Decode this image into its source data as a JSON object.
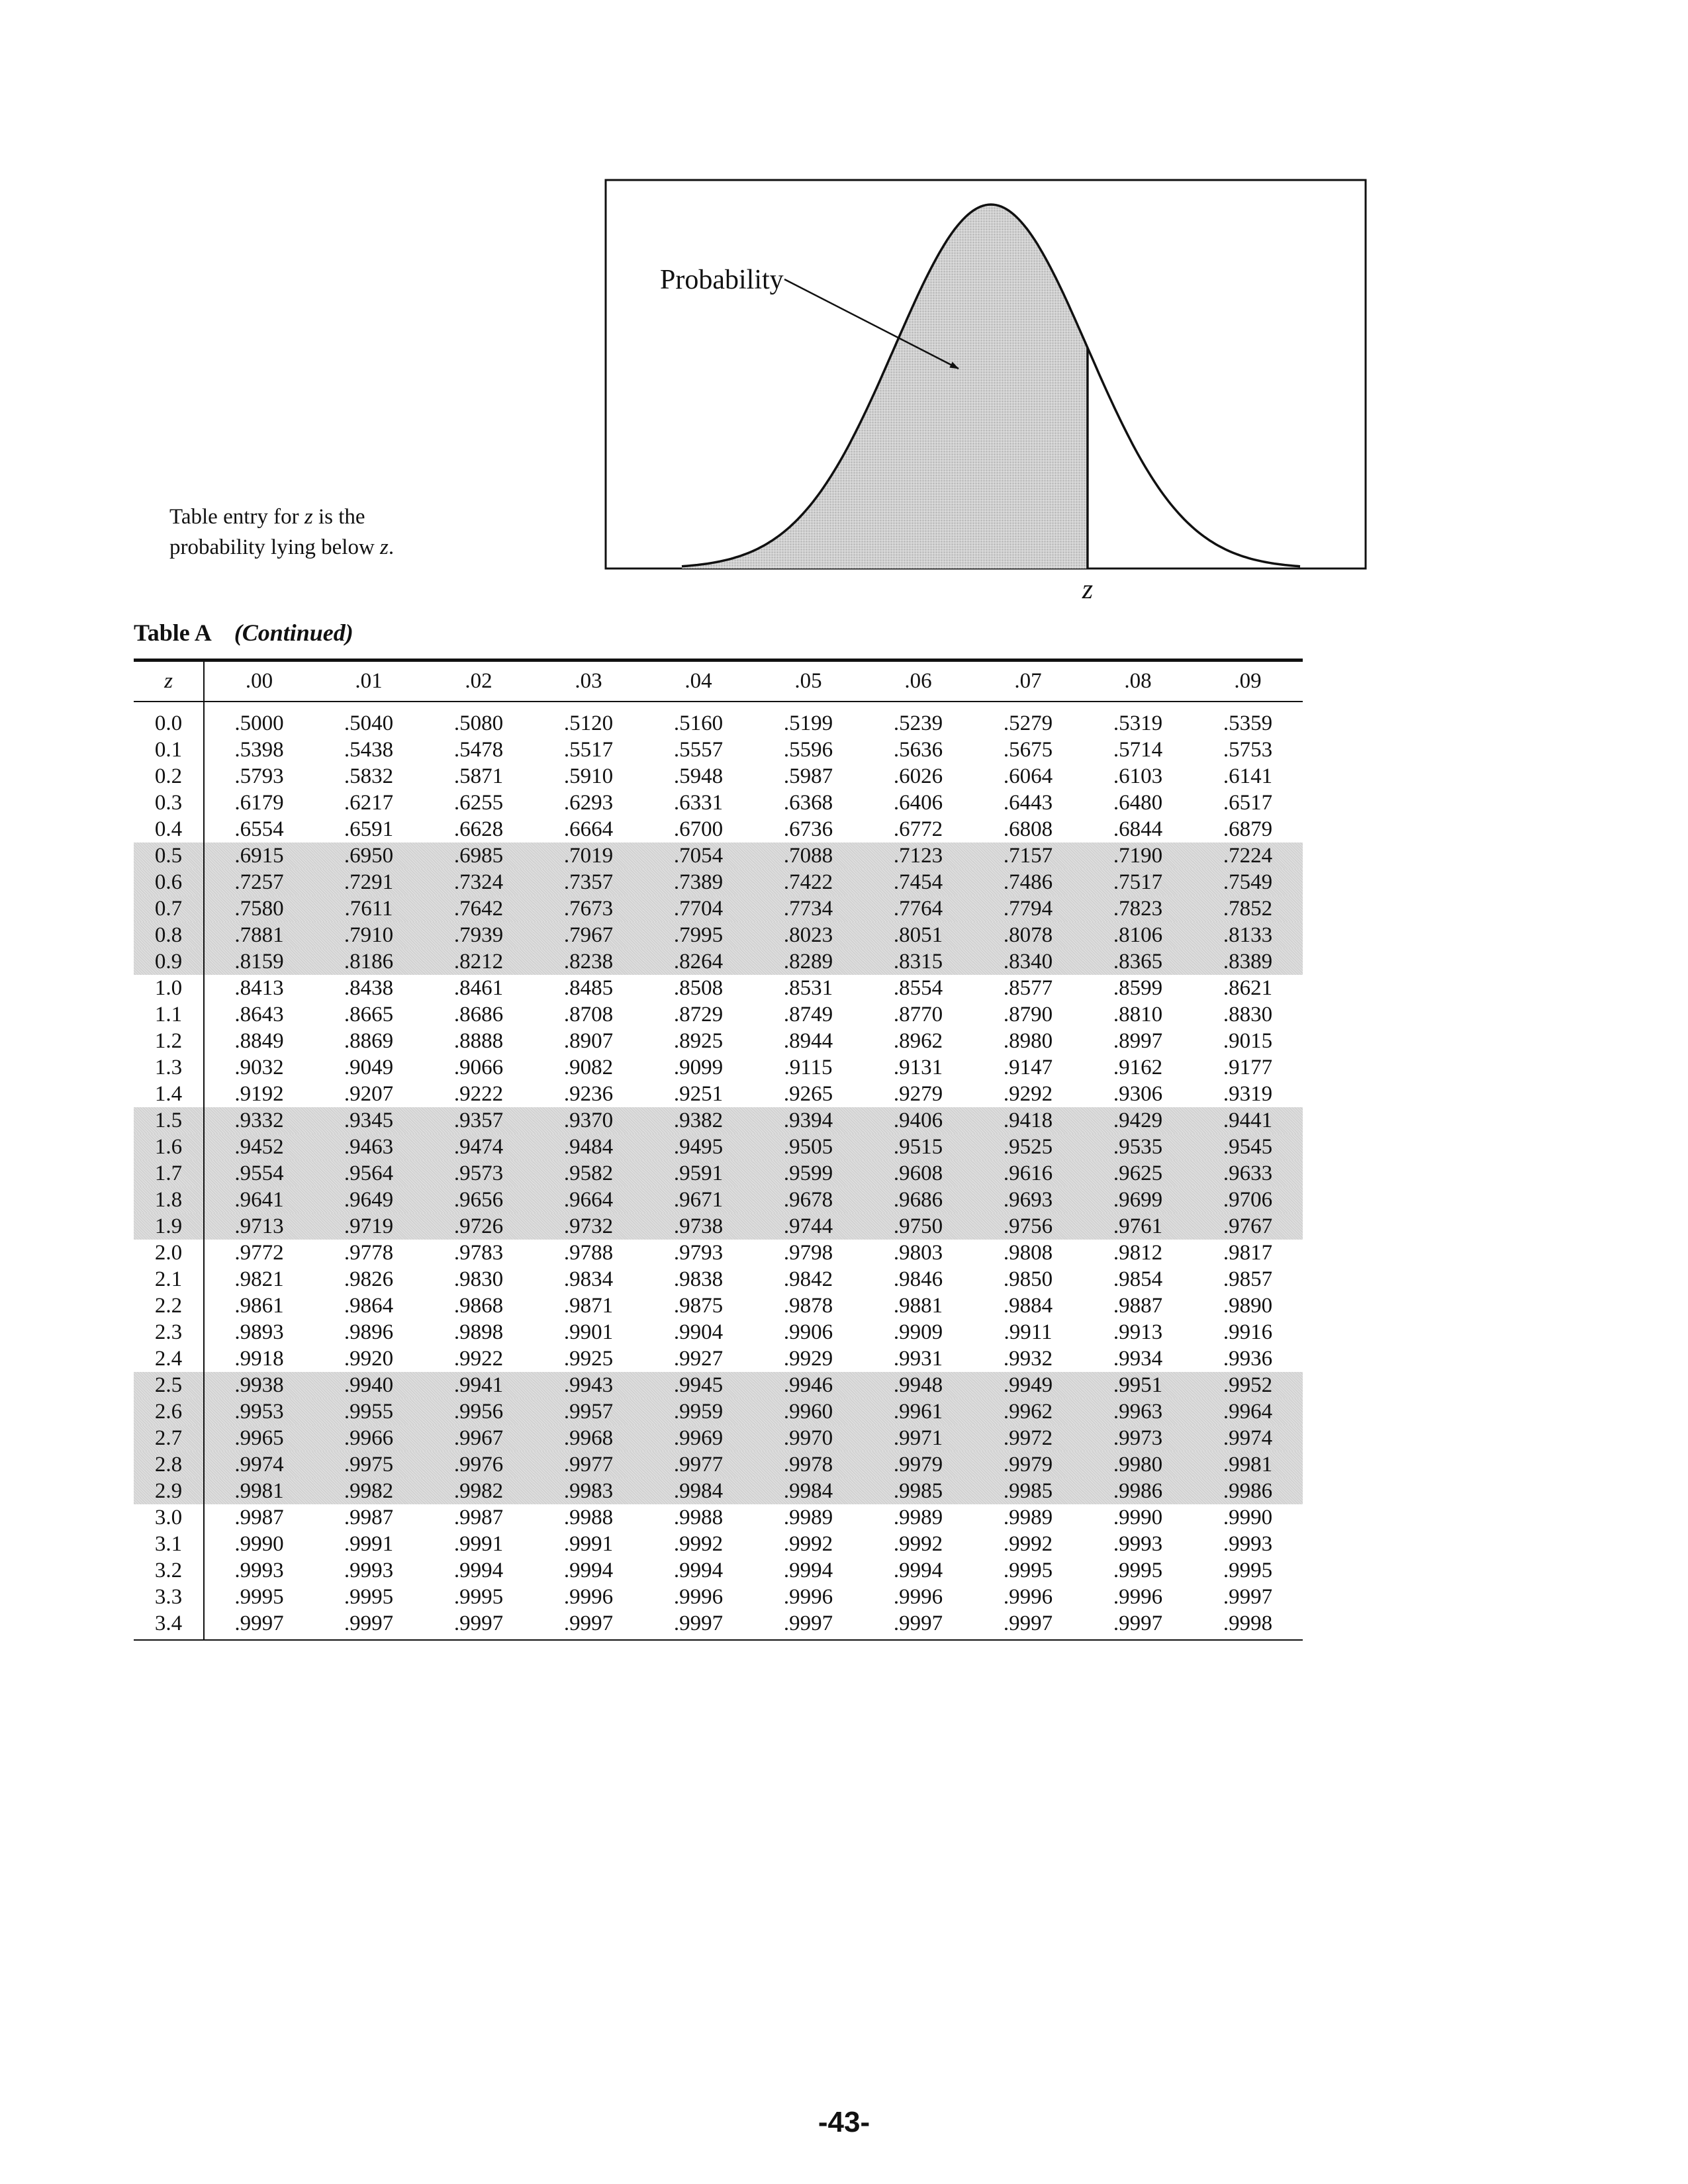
{
  "figure": {
    "arrow_label": "Probability",
    "z_marker": "z",
    "caption_line1_pre": "Table entry for ",
    "caption_line1_z": "z",
    "caption_line1_post": " is the",
    "caption_line2_pre": "probability lying below ",
    "caption_line2_z": "z",
    "caption_line2_post": ".",
    "shading_color": "#d2d2d2",
    "curve": {
      "mean": 0,
      "sd": 1,
      "x_range": [
        -3.2,
        3.2
      ],
      "shaded_below_z": 1.0
    }
  },
  "table": {
    "name": "Table A",
    "status": "(Continued)",
    "z_header": "z",
    "column_headers": [
      ".00",
      ".01",
      ".02",
      ".03",
      ".04",
      ".05",
      ".06",
      ".07",
      ".08",
      ".09"
    ],
    "shaded_color": "#d2d2d2",
    "rows": [
      {
        "z": "0.0",
        "shaded": false,
        "values": [
          ".5000",
          ".5040",
          ".5080",
          ".5120",
          ".5160",
          ".5199",
          ".5239",
          ".5279",
          ".5319",
          ".5359"
        ]
      },
      {
        "z": "0.1",
        "shaded": false,
        "values": [
          ".5398",
          ".5438",
          ".5478",
          ".5517",
          ".5557",
          ".5596",
          ".5636",
          ".5675",
          ".5714",
          ".5753"
        ]
      },
      {
        "z": "0.2",
        "shaded": false,
        "values": [
          ".5793",
          ".5832",
          ".5871",
          ".5910",
          ".5948",
          ".5987",
          ".6026",
          ".6064",
          ".6103",
          ".6141"
        ]
      },
      {
        "z": "0.3",
        "shaded": false,
        "values": [
          ".6179",
          ".6217",
          ".6255",
          ".6293",
          ".6331",
          ".6368",
          ".6406",
          ".6443",
          ".6480",
          ".6517"
        ]
      },
      {
        "z": "0.4",
        "shaded": false,
        "values": [
          ".6554",
          ".6591",
          ".6628",
          ".6664",
          ".6700",
          ".6736",
          ".6772",
          ".6808",
          ".6844",
          ".6879"
        ]
      },
      {
        "z": "0.5",
        "shaded": true,
        "values": [
          ".6915",
          ".6950",
          ".6985",
          ".7019",
          ".7054",
          ".7088",
          ".7123",
          ".7157",
          ".7190",
          ".7224"
        ]
      },
      {
        "z": "0.6",
        "shaded": true,
        "values": [
          ".7257",
          ".7291",
          ".7324",
          ".7357",
          ".7389",
          ".7422",
          ".7454",
          ".7486",
          ".7517",
          ".7549"
        ]
      },
      {
        "z": "0.7",
        "shaded": true,
        "values": [
          ".7580",
          ".7611",
          ".7642",
          ".7673",
          ".7704",
          ".7734",
          ".7764",
          ".7794",
          ".7823",
          ".7852"
        ]
      },
      {
        "z": "0.8",
        "shaded": true,
        "values": [
          ".7881",
          ".7910",
          ".7939",
          ".7967",
          ".7995",
          ".8023",
          ".8051",
          ".8078",
          ".8106",
          ".8133"
        ]
      },
      {
        "z": "0.9",
        "shaded": true,
        "values": [
          ".8159",
          ".8186",
          ".8212",
          ".8238",
          ".8264",
          ".8289",
          ".8315",
          ".8340",
          ".8365",
          ".8389"
        ]
      },
      {
        "z": "1.0",
        "shaded": false,
        "values": [
          ".8413",
          ".8438",
          ".8461",
          ".8485",
          ".8508",
          ".8531",
          ".8554",
          ".8577",
          ".8599",
          ".8621"
        ]
      },
      {
        "z": "1.1",
        "shaded": false,
        "values": [
          ".8643",
          ".8665",
          ".8686",
          ".8708",
          ".8729",
          ".8749",
          ".8770",
          ".8790",
          ".8810",
          ".8830"
        ]
      },
      {
        "z": "1.2",
        "shaded": false,
        "values": [
          ".8849",
          ".8869",
          ".8888",
          ".8907",
          ".8925",
          ".8944",
          ".8962",
          ".8980",
          ".8997",
          ".9015"
        ]
      },
      {
        "z": "1.3",
        "shaded": false,
        "values": [
          ".9032",
          ".9049",
          ".9066",
          ".9082",
          ".9099",
          ".9115",
          ".9131",
          ".9147",
          ".9162",
          ".9177"
        ]
      },
      {
        "z": "1.4",
        "shaded": false,
        "values": [
          ".9192",
          ".9207",
          ".9222",
          ".9236",
          ".9251",
          ".9265",
          ".9279",
          ".9292",
          ".9306",
          ".9319"
        ]
      },
      {
        "z": "1.5",
        "shaded": true,
        "values": [
          ".9332",
          ".9345",
          ".9357",
          ".9370",
          ".9382",
          ".9394",
          ".9406",
          ".9418",
          ".9429",
          ".9441"
        ]
      },
      {
        "z": "1.6",
        "shaded": true,
        "values": [
          ".9452",
          ".9463",
          ".9474",
          ".9484",
          ".9495",
          ".9505",
          ".9515",
          ".9525",
          ".9535",
          ".9545"
        ]
      },
      {
        "z": "1.7",
        "shaded": true,
        "values": [
          ".9554",
          ".9564",
          ".9573",
          ".9582",
          ".9591",
          ".9599",
          ".9608",
          ".9616",
          ".9625",
          ".9633"
        ]
      },
      {
        "z": "1.8",
        "shaded": true,
        "values": [
          ".9641",
          ".9649",
          ".9656",
          ".9664",
          ".9671",
          ".9678",
          ".9686",
          ".9693",
          ".9699",
          ".9706"
        ]
      },
      {
        "z": "1.9",
        "shaded": true,
        "values": [
          ".9713",
          ".9719",
          ".9726",
          ".9732",
          ".9738",
          ".9744",
          ".9750",
          ".9756",
          ".9761",
          ".9767"
        ]
      },
      {
        "z": "2.0",
        "shaded": false,
        "values": [
          ".9772",
          ".9778",
          ".9783",
          ".9788",
          ".9793",
          ".9798",
          ".9803",
          ".9808",
          ".9812",
          ".9817"
        ]
      },
      {
        "z": "2.1",
        "shaded": false,
        "values": [
          ".9821",
          ".9826",
          ".9830",
          ".9834",
          ".9838",
          ".9842",
          ".9846",
          ".9850",
          ".9854",
          ".9857"
        ]
      },
      {
        "z": "2.2",
        "shaded": false,
        "values": [
          ".9861",
          ".9864",
          ".9868",
          ".9871",
          ".9875",
          ".9878",
          ".9881",
          ".9884",
          ".9887",
          ".9890"
        ]
      },
      {
        "z": "2.3",
        "shaded": false,
        "values": [
          ".9893",
          ".9896",
          ".9898",
          ".9901",
          ".9904",
          ".9906",
          ".9909",
          ".9911",
          ".9913",
          ".9916"
        ]
      },
      {
        "z": "2.4",
        "shaded": false,
        "values": [
          ".9918",
          ".9920",
          ".9922",
          ".9925",
          ".9927",
          ".9929",
          ".9931",
          ".9932",
          ".9934",
          ".9936"
        ]
      },
      {
        "z": "2.5",
        "shaded": true,
        "values": [
          ".9938",
          ".9940",
          ".9941",
          ".9943",
          ".9945",
          ".9946",
          ".9948",
          ".9949",
          ".9951",
          ".9952"
        ]
      },
      {
        "z": "2.6",
        "shaded": true,
        "values": [
          ".9953",
          ".9955",
          ".9956",
          ".9957",
          ".9959",
          ".9960",
          ".9961",
          ".9962",
          ".9963",
          ".9964"
        ]
      },
      {
        "z": "2.7",
        "shaded": true,
        "values": [
          ".9965",
          ".9966",
          ".9967",
          ".9968",
          ".9969",
          ".9970",
          ".9971",
          ".9972",
          ".9973",
          ".9974"
        ]
      },
      {
        "z": "2.8",
        "shaded": true,
        "values": [
          ".9974",
          ".9975",
          ".9976",
          ".9977",
          ".9977",
          ".9978",
          ".9979",
          ".9979",
          ".9980",
          ".9981"
        ]
      },
      {
        "z": "2.9",
        "shaded": true,
        "values": [
          ".9981",
          ".9982",
          ".9982",
          ".9983",
          ".9984",
          ".9984",
          ".9985",
          ".9985",
          ".9986",
          ".9986"
        ]
      },
      {
        "z": "3.0",
        "shaded": false,
        "values": [
          ".9987",
          ".9987",
          ".9987",
          ".9988",
          ".9988",
          ".9989",
          ".9989",
          ".9989",
          ".9990",
          ".9990"
        ]
      },
      {
        "z": "3.1",
        "shaded": false,
        "values": [
          ".9990",
          ".9991",
          ".9991",
          ".9991",
          ".9992",
          ".9992",
          ".9992",
          ".9992",
          ".9993",
          ".9993"
        ]
      },
      {
        "z": "3.2",
        "shaded": false,
        "values": [
          ".9993",
          ".9993",
          ".9994",
          ".9994",
          ".9994",
          ".9994",
          ".9994",
          ".9995",
          ".9995",
          ".9995"
        ]
      },
      {
        "z": "3.3",
        "shaded": false,
        "values": [
          ".9995",
          ".9995",
          ".9995",
          ".9996",
          ".9996",
          ".9996",
          ".9996",
          ".9996",
          ".9996",
          ".9997"
        ]
      },
      {
        "z": "3.4",
        "shaded": false,
        "values": [
          ".9997",
          ".9997",
          ".9997",
          ".9997",
          ".9997",
          ".9997",
          ".9997",
          ".9997",
          ".9997",
          ".9998"
        ]
      }
    ]
  },
  "page_number": "-43-"
}
